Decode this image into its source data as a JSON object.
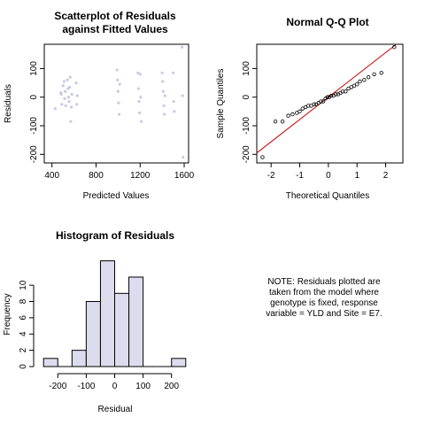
{
  "chart_data": [
    {
      "type": "scatter",
      "title_lines": [
        "Scatterplot of Residuals",
        "against Fitted Values"
      ],
      "xlabel": "Predicted Values",
      "ylabel": "Residuals",
      "xlim": [
        330,
        1640
      ],
      "ylim": [
        -230,
        185
      ],
      "xticks": [
        400,
        800,
        1200,
        1600
      ],
      "yticks": [
        -200,
        -100,
        0,
        100
      ],
      "point_color": "#c9c9e6",
      "points": [
        {
          "x": 430,
          "y": -40
        },
        {
          "x": 480,
          "y": 15
        },
        {
          "x": 485,
          "y": 10
        },
        {
          "x": 490,
          "y": -25
        },
        {
          "x": 500,
          "y": 40
        },
        {
          "x": 510,
          "y": 55
        },
        {
          "x": 515,
          "y": -5
        },
        {
          "x": 520,
          "y": 20
        },
        {
          "x": 525,
          "y": -30
        },
        {
          "x": 540,
          "y": 60
        },
        {
          "x": 545,
          "y": 30
        },
        {
          "x": 550,
          "y": 0
        },
        {
          "x": 555,
          "y": -15
        },
        {
          "x": 560,
          "y": 35
        },
        {
          "x": 565,
          "y": 70
        },
        {
          "x": 570,
          "y": -85
        },
        {
          "x": 575,
          "y": -35
        },
        {
          "x": 580,
          "y": 10
        },
        {
          "x": 620,
          "y": 50
        },
        {
          "x": 625,
          "y": -25
        },
        {
          "x": 630,
          "y": 5
        },
        {
          "x": 990,
          "y": 95
        },
        {
          "x": 995,
          "y": 60
        },
        {
          "x": 1000,
          "y": 20
        },
        {
          "x": 1005,
          "y": -20
        },
        {
          "x": 1010,
          "y": -60
        },
        {
          "x": 1015,
          "y": 45
        },
        {
          "x": 1180,
          "y": 85
        },
        {
          "x": 1185,
          "y": 30
        },
        {
          "x": 1190,
          "y": -15
        },
        {
          "x": 1195,
          "y": -55
        },
        {
          "x": 1200,
          "y": 80
        },
        {
          "x": 1205,
          "y": 0
        },
        {
          "x": 1210,
          "y": -85
        },
        {
          "x": 1400,
          "y": 85
        },
        {
          "x": 1405,
          "y": 55
        },
        {
          "x": 1410,
          "y": 20
        },
        {
          "x": 1415,
          "y": -30
        },
        {
          "x": 1420,
          "y": -60
        },
        {
          "x": 1425,
          "y": 5
        },
        {
          "x": 1500,
          "y": 85
        },
        {
          "x": 1505,
          "y": -15
        },
        {
          "x": 1510,
          "y": -50
        },
        {
          "x": 1580,
          "y": 175
        },
        {
          "x": 1585,
          "y": 5
        },
        {
          "x": 1590,
          "y": -210
        }
      ]
    },
    {
      "type": "scatter",
      "title": "Normal Q-Q Plot",
      "xlabel": "Theoretical Quantiles",
      "ylabel": "Sample Quantiles",
      "xlim": [
        -2.5,
        2.6
      ],
      "ylim": [
        -230,
        185
      ],
      "xticks": [
        -2,
        -1,
        0,
        1,
        2
      ],
      "yticks": [
        -200,
        -100,
        0,
        100
      ],
      "line_color": "#cc0000",
      "reference_line": {
        "intercept": 0,
        "slope": 78
      },
      "points": [
        {
          "x": -2.3,
          "y": -210
        },
        {
          "x": -1.85,
          "y": -85
        },
        {
          "x": -1.6,
          "y": -85
        },
        {
          "x": -1.4,
          "y": -65
        },
        {
          "x": -1.25,
          "y": -60
        },
        {
          "x": -1.1,
          "y": -55
        },
        {
          "x": -1.0,
          "y": -50
        },
        {
          "x": -0.9,
          "y": -40
        },
        {
          "x": -0.8,
          "y": -35
        },
        {
          "x": -0.7,
          "y": -30
        },
        {
          "x": -0.6,
          "y": -30
        },
        {
          "x": -0.5,
          "y": -25
        },
        {
          "x": -0.42,
          "y": -25
        },
        {
          "x": -0.34,
          "y": -20
        },
        {
          "x": -0.26,
          "y": -15
        },
        {
          "x": -0.18,
          "y": -15
        },
        {
          "x": -0.1,
          "y": -5
        },
        {
          "x": -0.03,
          "y": 0
        },
        {
          "x": 0.03,
          "y": 0
        },
        {
          "x": 0.1,
          "y": 5
        },
        {
          "x": 0.18,
          "y": 5
        },
        {
          "x": 0.26,
          "y": 10
        },
        {
          "x": 0.34,
          "y": 10
        },
        {
          "x": 0.42,
          "y": 15
        },
        {
          "x": 0.5,
          "y": 20
        },
        {
          "x": 0.6,
          "y": 20
        },
        {
          "x": 0.7,
          "y": 30
        },
        {
          "x": 0.8,
          "y": 35
        },
        {
          "x": 0.9,
          "y": 40
        },
        {
          "x": 1.0,
          "y": 45
        },
        {
          "x": 1.1,
          "y": 55
        },
        {
          "x": 1.25,
          "y": 60
        },
        {
          "x": 1.4,
          "y": 70
        },
        {
          "x": 1.6,
          "y": 80
        },
        {
          "x": 1.85,
          "y": 85
        },
        {
          "x": 2.3,
          "y": 175
        }
      ]
    },
    {
      "type": "bar",
      "title": "Histogram of Residuals",
      "xlabel": "Residual",
      "ylabel": "Frequency",
      "xlim": [
        -260,
        260
      ],
      "ylim": [
        0,
        13.5
      ],
      "xticks": [
        -200,
        -100,
        0,
        100,
        200
      ],
      "yticks": [
        0,
        2,
        4,
        6,
        8,
        10
      ],
      "bar_color": "#dcdcee",
      "bins": [
        {
          "from": -250,
          "to": -200,
          "count": 1
        },
        {
          "from": -200,
          "to": -150,
          "count": 0
        },
        {
          "from": -150,
          "to": -100,
          "count": 2
        },
        {
          "from": -100,
          "to": -50,
          "count": 8
        },
        {
          "from": -50,
          "to": 0,
          "count": 13
        },
        {
          "from": 0,
          "to": 50,
          "count": 9
        },
        {
          "from": 50,
          "to": 100,
          "count": 11
        },
        {
          "from": 100,
          "to": 150,
          "count": 0
        },
        {
          "from": 150,
          "to": 200,
          "count": 0
        },
        {
          "from": 200,
          "to": 250,
          "count": 1
        }
      ]
    }
  ],
  "note_lines": [
    "NOTE: Residuals plotted are",
    "taken from the model where",
    "genotype is fixed, response",
    "variable = YLD and Site = E7."
  ]
}
